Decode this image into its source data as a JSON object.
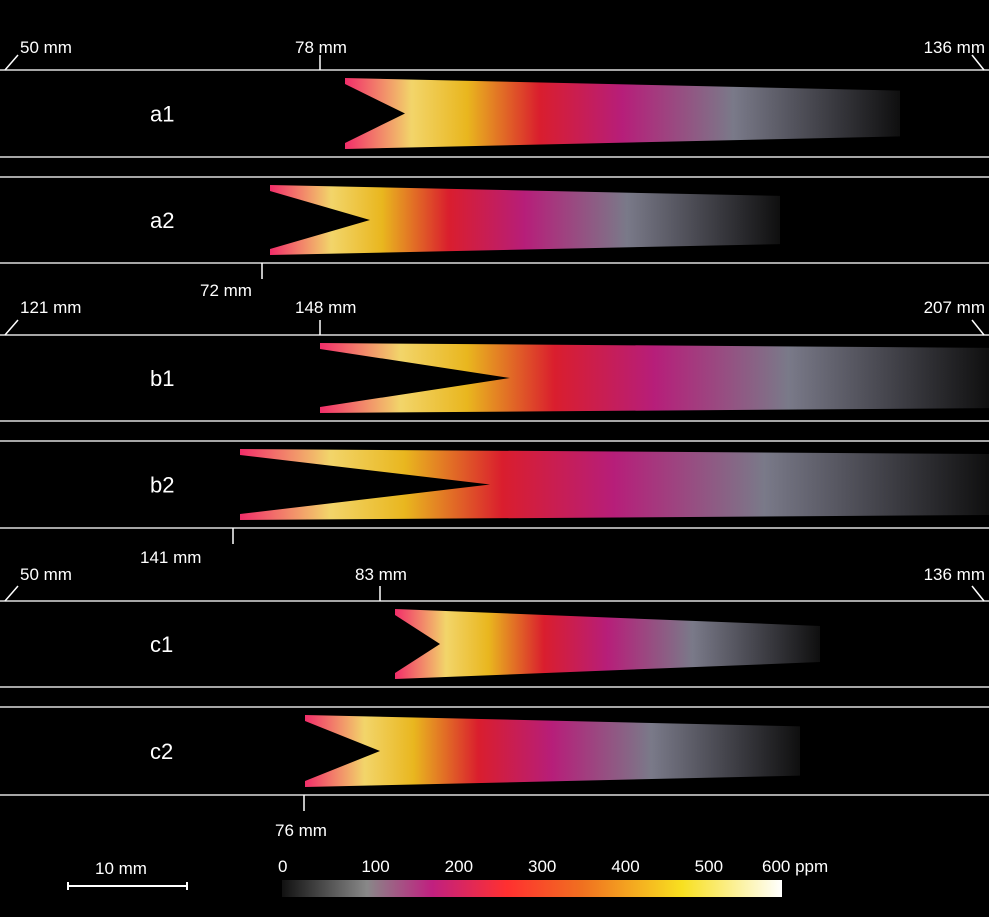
{
  "groups": [
    {
      "left": "50 mm",
      "mid": "78 mm",
      "right": "136 mm",
      "panels": [
        "a1",
        "a2"
      ],
      "bottom": "72 mm"
    },
    {
      "left": "121 mm",
      "mid": "148 mm",
      "right": "207 mm",
      "panels": [
        "b1",
        "b2"
      ],
      "bottom": "141 mm"
    },
    {
      "left": "50 mm",
      "mid": "83 mm",
      "right": "136 mm",
      "panels": [
        "c1",
        "c2"
      ],
      "bottom": "76 mm"
    }
  ],
  "scale_bar": "10 mm",
  "colorbar": [
    "0",
    "100",
    "200",
    "300",
    "400",
    "500",
    "600 ppm"
  ]
}
